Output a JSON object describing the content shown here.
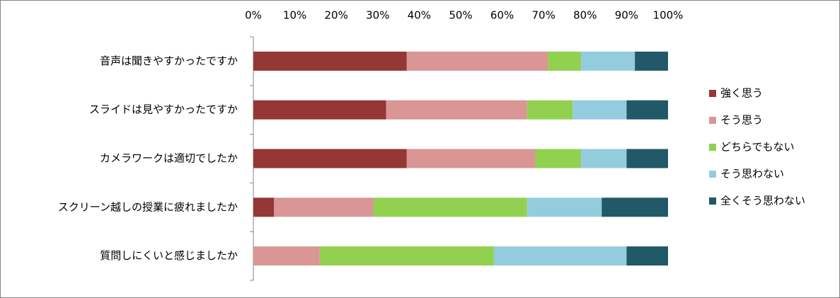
{
  "chart_data": {
    "type": "bar",
    "orientation": "horizontal",
    "stacked": true,
    "categories": [
      "音声は聞きやすかったですか",
      "スライドは見やすかったですか",
      "カメラワークは適切でしたか",
      "スクリーン越しの授業に疲れましたか",
      "質問しにくいと感じましたか"
    ],
    "series": [
      {
        "name": "強く思う",
        "color": "#953735",
        "values": [
          37,
          32,
          37,
          5,
          0
        ]
      },
      {
        "name": "そう思う",
        "color": "#d99694",
        "values": [
          34,
          34,
          31,
          24,
          16
        ]
      },
      {
        "name": "どちらでもない",
        "color": "#92d050",
        "values": [
          8,
          11,
          11,
          37,
          42
        ]
      },
      {
        "name": "そう思わない",
        "color": "#93cddd",
        "values": [
          13,
          13,
          11,
          18,
          32
        ]
      },
      {
        "name": "全くそう思わない",
        "color": "#215968",
        "values": [
          8,
          10,
          10,
          16,
          10
        ]
      }
    ],
    "xlim": [
      0,
      100
    ],
    "xticks": [
      {
        "value": 0,
        "label": "0%"
      },
      {
        "value": 10,
        "label": "10%"
      },
      {
        "value": 20,
        "label": "20%"
      },
      {
        "value": 30,
        "label": "30%"
      },
      {
        "value": 40,
        "label": "40%"
      },
      {
        "value": 50,
        "label": "50%"
      },
      {
        "value": 60,
        "label": "60%"
      },
      {
        "value": 70,
        "label": "70%"
      },
      {
        "value": 80,
        "label": "80%"
      },
      {
        "value": 90,
        "label": "90%"
      },
      {
        "value": 100,
        "label": "100%"
      }
    ],
    "legend": "right"
  }
}
